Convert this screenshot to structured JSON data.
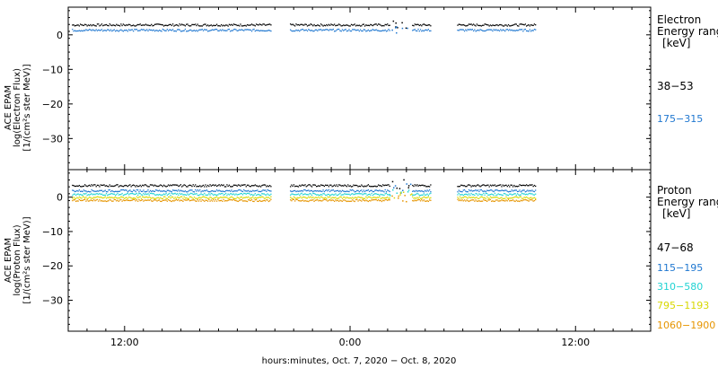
{
  "chart_data": [
    {
      "type": "scatter",
      "panel": "electron",
      "ylabel_lines": [
        "ACE EPAM",
        "log(Electron Flux)",
        "[1/(cm²s ster MeV)]"
      ],
      "yticks": [
        "0",
        "−10",
        "−20",
        "−30"
      ],
      "ylim": [
        -39,
        8
      ],
      "legend_title_lines": [
        "Electron",
        "Energy range",
        "[keV]"
      ],
      "series": [
        {
          "name": "38−53",
          "color": "#000000",
          "level": 3.0
        },
        {
          "name": "175−315",
          "color": "#1f77d0",
          "level": 1.5
        }
      ]
    },
    {
      "type": "scatter",
      "panel": "proton",
      "ylabel_lines": [
        "ACE EPAM",
        "log(Proton Flux)",
        "[1/(cm²s ster MeV)]"
      ],
      "yticks": [
        "0",
        "−10",
        "−20",
        "−30"
      ],
      "ylim": [
        -39,
        8
      ],
      "legend_title_lines": [
        "Proton",
        "Energy range",
        "[keV]"
      ],
      "series": [
        {
          "name": "47−68",
          "color": "#000000",
          "level": 3.5
        },
        {
          "name": "115−195",
          "color": "#1f77d0",
          "level": 2.0
        },
        {
          "name": "310−580",
          "color": "#22d3d3",
          "level": 1.0
        },
        {
          "name": "795−1193",
          "color": "#d8d800",
          "level": 0.0
        },
        {
          "name": "1060−1900",
          "color": "#e69500",
          "level": -0.8
        }
      ]
    }
  ],
  "x_axis": {
    "label": "hours:minutes, Oct.  7, 2020 − Oct.  8, 2020",
    "ticks": [
      {
        "label": "12:00",
        "hour": 12
      },
      {
        "label": "0:00",
        "hour": 24
      },
      {
        "label": "12:00",
        "hour": 36
      }
    ],
    "xlim_hours": [
      9,
      40
    ],
    "data_segments_hours": [
      [
        9.2,
        19.8
      ],
      [
        20.8,
        26.1
      ],
      [
        27.3,
        28.3
      ],
      [
        29.7,
        33.9
      ]
    ]
  }
}
